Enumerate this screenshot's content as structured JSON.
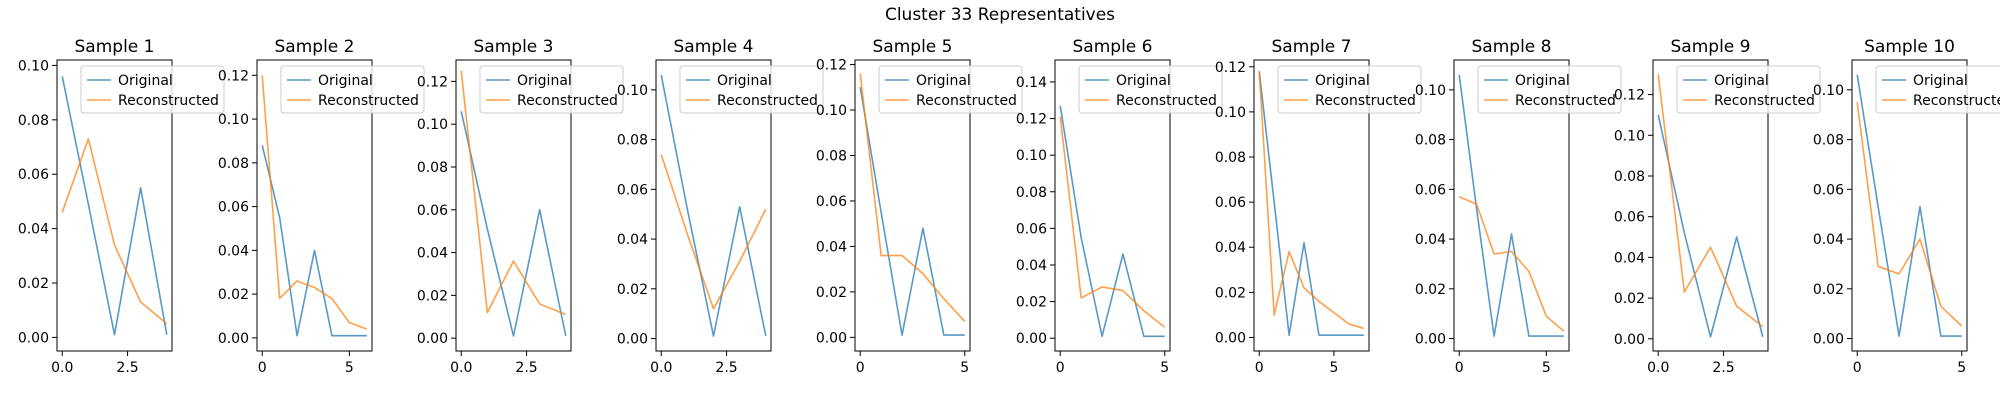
{
  "figure": {
    "title": "Cluster 33 Representatives"
  },
  "colors": {
    "original": "#1f77b4",
    "reconstructed": "#ff7f0e"
  },
  "legend": {
    "original": "Original",
    "reconstructed": "Reconstructed",
    "placement": "upper-right"
  },
  "chart_data": [
    {
      "type": "line",
      "title": "Sample 1",
      "xlim": [
        -0.2,
        4.2
      ],
      "ylim": [
        -0.005,
        0.102
      ],
      "xticks": [
        0.0,
        2.5
      ],
      "xtick_labels": [
        "0.0",
        "2.5"
      ],
      "yticks": [
        0,
        0.02,
        0.04,
        0.06,
        0.08,
        0.1
      ],
      "ytick_labels": [
        "0.00",
        "0.02",
        "0.04",
        "0.06",
        "0.08",
        "0.10"
      ],
      "series": [
        {
          "name": "Original",
          "x": [
            0,
            1,
            2,
            3,
            4
          ],
          "y": [
            0.096,
            0.049,
            0.001,
            0.055,
            0.001
          ]
        },
        {
          "name": "Reconstructed",
          "x": [
            0,
            1,
            2,
            3,
            4
          ],
          "y": [
            0.046,
            0.073,
            0.034,
            0.013,
            0.005
          ]
        }
      ]
    },
    {
      "type": "line",
      "title": "Sample 2",
      "xlim": [
        -0.3,
        6.3
      ],
      "ylim": [
        -0.006,
        0.127
      ],
      "xticks": [
        0,
        5
      ],
      "xtick_labels": [
        "0",
        "5"
      ],
      "yticks": [
        0,
        0.02,
        0.04,
        0.06,
        0.08,
        0.1,
        0.12
      ],
      "ytick_labels": [
        "0.00",
        "0.02",
        "0.04",
        "0.06",
        "0.08",
        "0.10",
        "0.12"
      ],
      "series": [
        {
          "name": "Original",
          "x": [
            0,
            1,
            2,
            3,
            4,
            5,
            6
          ],
          "y": [
            0.088,
            0.055,
            0.001,
            0.04,
            0.001,
            0.001,
            0.001
          ]
        },
        {
          "name": "Reconstructed",
          "x": [
            0,
            1,
            2,
            3,
            4,
            5,
            6
          ],
          "y": [
            0.12,
            0.018,
            0.026,
            0.023,
            0.018,
            0.007,
            0.004
          ]
        }
      ]
    },
    {
      "type": "line",
      "title": "Sample 3",
      "xlim": [
        -0.2,
        4.2
      ],
      "ylim": [
        -0.006,
        0.13
      ],
      "xticks": [
        0.0,
        2.5
      ],
      "xtick_labels": [
        "0.0",
        "2.5"
      ],
      "yticks": [
        0,
        0.02,
        0.04,
        0.06,
        0.08,
        0.1,
        0.12
      ],
      "ytick_labels": [
        "0.00",
        "0.02",
        "0.04",
        "0.06",
        "0.08",
        "0.10",
        "0.12"
      ],
      "series": [
        {
          "name": "Original",
          "x": [
            0,
            1,
            2,
            3,
            4
          ],
          "y": [
            0.106,
            0.051,
            0.001,
            0.06,
            0.001
          ]
        },
        {
          "name": "Reconstructed",
          "x": [
            0,
            1,
            2,
            3,
            4
          ],
          "y": [
            0.125,
            0.012,
            0.036,
            0.016,
            0.011
          ]
        }
      ]
    },
    {
      "type": "line",
      "title": "Sample 4",
      "xlim": [
        -0.2,
        4.2
      ],
      "ylim": [
        -0.005,
        0.112
      ],
      "xticks": [
        0.0,
        2.5
      ],
      "xtick_labels": [
        "0.0",
        "2.5"
      ],
      "yticks": [
        0,
        0.02,
        0.04,
        0.06,
        0.08,
        0.1
      ],
      "ytick_labels": [
        "0.00",
        "0.02",
        "0.04",
        "0.06",
        "0.08",
        "0.10"
      ],
      "series": [
        {
          "name": "Original",
          "x": [
            0,
            1,
            2,
            3,
            4
          ],
          "y": [
            0.106,
            0.052,
            0.001,
            0.053,
            0.001
          ]
        },
        {
          "name": "Reconstructed",
          "x": [
            0,
            1,
            2,
            3,
            4
          ],
          "y": [
            0.074,
            0.042,
            0.012,
            0.031,
            0.052
          ]
        }
      ]
    },
    {
      "type": "line",
      "title": "Sample 5",
      "xlim": [
        -0.25,
        5.25
      ],
      "ylim": [
        -0.006,
        0.122
      ],
      "xticks": [
        0,
        5
      ],
      "xtick_labels": [
        "0",
        "5"
      ],
      "yticks": [
        0,
        0.02,
        0.04,
        0.06,
        0.08,
        0.1,
        0.12
      ],
      "ytick_labels": [
        "0.00",
        "0.02",
        "0.04",
        "0.06",
        "0.08",
        "0.10",
        "0.12"
      ],
      "series": [
        {
          "name": "Original",
          "x": [
            0,
            1,
            2,
            3,
            4,
            5
          ],
          "y": [
            0.11,
            0.055,
            0.001,
            0.048,
            0.001,
            0.001
          ]
        },
        {
          "name": "Reconstructed",
          "x": [
            0,
            1,
            2,
            3,
            4,
            5
          ],
          "y": [
            0.116,
            0.036,
            0.036,
            0.028,
            0.017,
            0.007
          ]
        }
      ]
    },
    {
      "type": "line",
      "title": "Sample 6",
      "xlim": [
        -0.25,
        5.25
      ],
      "ylim": [
        -0.007,
        0.152
      ],
      "xticks": [
        0,
        5
      ],
      "xtick_labels": [
        "0",
        "5"
      ],
      "yticks": [
        0,
        0.02,
        0.04,
        0.06,
        0.08,
        0.1,
        0.12,
        0.14
      ],
      "ytick_labels": [
        "0.00",
        "0.02",
        "0.04",
        "0.06",
        "0.08",
        "0.10",
        "0.12",
        "0.14"
      ],
      "series": [
        {
          "name": "Original",
          "x": [
            0,
            1,
            2,
            3,
            4,
            5
          ],
          "y": [
            0.127,
            0.055,
            0.001,
            0.046,
            0.001,
            0.001
          ]
        },
        {
          "name": "Reconstructed",
          "x": [
            0,
            1,
            2,
            3,
            4,
            5
          ],
          "y": [
            0.121,
            0.022,
            0.028,
            0.026,
            0.015,
            0.006
          ]
        }
      ]
    },
    {
      "type": "line",
      "title": "Sample 7",
      "xlim": [
        -0.35,
        7.35
      ],
      "ylim": [
        -0.006,
        0.123
      ],
      "xticks": [
        0,
        5
      ],
      "xtick_labels": [
        "0",
        "5"
      ],
      "yticks": [
        0,
        0.02,
        0.04,
        0.06,
        0.08,
        0.1,
        0.12
      ],
      "ytick_labels": [
        "0.00",
        "0.02",
        "0.04",
        "0.06",
        "0.08",
        "0.10",
        "0.12"
      ],
      "series": [
        {
          "name": "Original",
          "x": [
            0,
            1,
            2,
            3,
            4,
            5,
            6,
            7
          ],
          "y": [
            0.118,
            0.06,
            0.001,
            0.042,
            0.001,
            0.001,
            0.001,
            0.001
          ]
        },
        {
          "name": "Reconstructed",
          "x": [
            0,
            1,
            2,
            3,
            4,
            5,
            6,
            7
          ],
          "y": [
            0.118,
            0.01,
            0.038,
            0.022,
            0.016,
            0.011,
            0.006,
            0.004
          ]
        }
      ]
    },
    {
      "type": "line",
      "title": "Sample 8",
      "xlim": [
        -0.3,
        6.3
      ],
      "ylim": [
        -0.005,
        0.112
      ],
      "xticks": [
        0,
        5
      ],
      "xtick_labels": [
        "0",
        "5"
      ],
      "yticks": [
        0,
        0.02,
        0.04,
        0.06,
        0.08,
        0.1
      ],
      "ytick_labels": [
        "0.00",
        "0.02",
        "0.04",
        "0.06",
        "0.08",
        "0.10"
      ],
      "series": [
        {
          "name": "Original",
          "x": [
            0,
            1,
            2,
            3,
            4,
            5,
            6
          ],
          "y": [
            0.106,
            0.052,
            0.001,
            0.042,
            0.001,
            0.001,
            0.001
          ]
        },
        {
          "name": "Reconstructed",
          "x": [
            0,
            1,
            2,
            3,
            4,
            5,
            6
          ],
          "y": [
            0.057,
            0.054,
            0.034,
            0.035,
            0.027,
            0.009,
            0.003
          ]
        }
      ]
    },
    {
      "type": "line",
      "title": "Sample 9",
      "xlim": [
        -0.2,
        4.2
      ],
      "ylim": [
        -0.006,
        0.137
      ],
      "xticks": [
        0.0,
        2.5
      ],
      "xtick_labels": [
        "0.0",
        "2.5"
      ],
      "yticks": [
        0,
        0.02,
        0.04,
        0.06,
        0.08,
        0.1,
        0.12
      ],
      "ytick_labels": [
        "0.00",
        "0.02",
        "0.04",
        "0.06",
        "0.08",
        "0.10",
        "0.12"
      ],
      "series": [
        {
          "name": "Original",
          "x": [
            0,
            1,
            2,
            3,
            4
          ],
          "y": [
            0.11,
            0.052,
            0.001,
            0.05,
            0.001
          ]
        },
        {
          "name": "Reconstructed",
          "x": [
            0,
            1,
            2,
            3,
            4
          ],
          "y": [
            0.13,
            0.023,
            0.045,
            0.016,
            0.006
          ]
        }
      ]
    },
    {
      "type": "line",
      "title": "Sample 10",
      "xlim": [
        -0.25,
        5.25
      ],
      "ylim": [
        -0.005,
        0.112
      ],
      "xticks": [
        0,
        5
      ],
      "xtick_labels": [
        "0",
        "5"
      ],
      "yticks": [
        0,
        0.02,
        0.04,
        0.06,
        0.08,
        0.1
      ],
      "ytick_labels": [
        "0.00",
        "0.02",
        "0.04",
        "0.06",
        "0.08",
        "0.10"
      ],
      "series": [
        {
          "name": "Original",
          "x": [
            0,
            1,
            2,
            3,
            4,
            5
          ],
          "y": [
            0.106,
            0.053,
            0.001,
            0.053,
            0.001,
            0.001
          ]
        },
        {
          "name": "Reconstructed",
          "x": [
            0,
            1,
            2,
            3,
            4,
            5
          ],
          "y": [
            0.095,
            0.029,
            0.026,
            0.04,
            0.013,
            0.005
          ]
        }
      ]
    }
  ]
}
